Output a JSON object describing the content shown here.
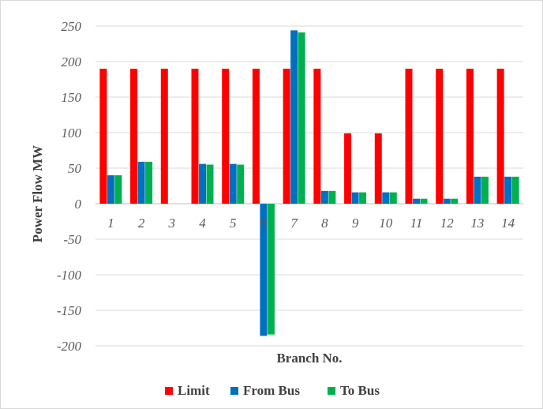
{
  "chart_data": {
    "type": "bar",
    "title": "",
    "xlabel": "Branch No.",
    "ylabel": "Power Flow MW",
    "categories": [
      "1",
      "2",
      "3",
      "4",
      "5",
      "6",
      "7",
      "8",
      "9",
      "10",
      "11",
      "12",
      "13",
      "14"
    ],
    "ylim": [
      -200,
      250
    ],
    "yticks": [
      250,
      200,
      150,
      100,
      50,
      0,
      -50,
      -100,
      -150,
      -200
    ],
    "grid": true,
    "legend_position": "bottom",
    "series": [
      {
        "name": "Limit",
        "color": "#ff0000",
        "values": [
          190,
          190,
          190,
          190,
          190,
          190,
          190,
          190,
          99,
          99,
          190,
          190,
          190,
          190
        ]
      },
      {
        "name": "From Bus",
        "color": "#0070c0",
        "values": [
          40,
          59,
          0,
          56,
          56,
          -186,
          244,
          18,
          16,
          16,
          7,
          7,
          38,
          38
        ]
      },
      {
        "name": "To Bus",
        "color": "#00b050",
        "values": [
          40,
          59,
          0,
          55,
          55,
          -184,
          241,
          18,
          16,
          16,
          7,
          7,
          38,
          38
        ]
      }
    ]
  }
}
